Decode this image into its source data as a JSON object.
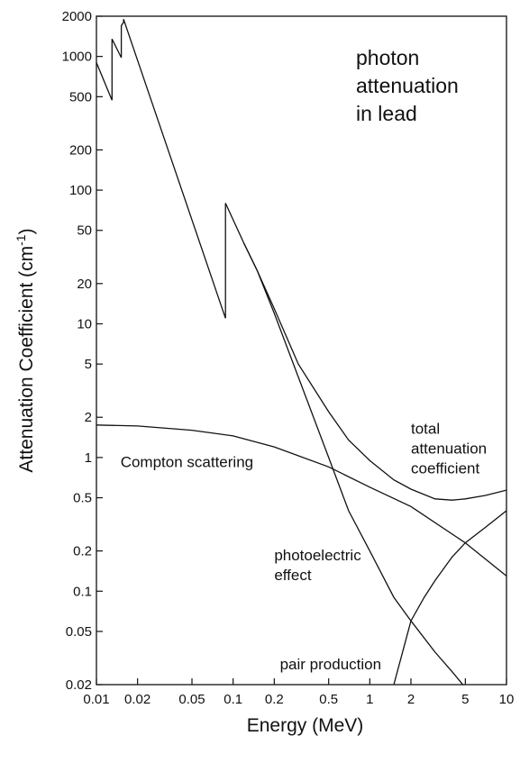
{
  "chart_data": {
    "type": "line",
    "title": [
      "photon",
      "attenuation",
      "in lead"
    ],
    "xlabel": "Energy (MeV)",
    "ylabel": "Attenuation Coefficient (cm",
    "ylabel_sup": "-1",
    "ylabel_close": ")",
    "xscale": "log",
    "yscale": "log",
    "xlim": [
      0.01,
      10
    ],
    "ylim": [
      0.02,
      2000
    ],
    "grid": false,
    "xticks": [
      {
        "value": 0.01,
        "label": "0.01"
      },
      {
        "value": 0.02,
        "label": "0.02"
      },
      {
        "value": 0.05,
        "label": "0.05"
      },
      {
        "value": 0.1,
        "label": "0.1"
      },
      {
        "value": 0.2,
        "label": "0.2"
      },
      {
        "value": 0.5,
        "label": "0.5"
      },
      {
        "value": 1,
        "label": "1"
      },
      {
        "value": 2,
        "label": "2"
      },
      {
        "value": 5,
        "label": "5"
      },
      {
        "value": 10,
        "label": "10"
      }
    ],
    "yticks": [
      {
        "value": 0.02,
        "label": "0.02"
      },
      {
        "value": 0.05,
        "label": "0.05"
      },
      {
        "value": 0.1,
        "label": "0.1"
      },
      {
        "value": 0.2,
        "label": "0.2"
      },
      {
        "value": 0.5,
        "label": "0.5"
      },
      {
        "value": 1,
        "label": "1"
      },
      {
        "value": 2,
        "label": "2"
      },
      {
        "value": 5,
        "label": "5"
      },
      {
        "value": 10,
        "label": "10"
      },
      {
        "value": 20,
        "label": "20"
      },
      {
        "value": 50,
        "label": "50"
      },
      {
        "value": 100,
        "label": "100"
      },
      {
        "value": 200,
        "label": "200"
      },
      {
        "value": 500,
        "label": "500"
      },
      {
        "value": 1000,
        "label": "1000"
      },
      {
        "value": 2000,
        "label": "2000"
      }
    ],
    "annotations": [
      {
        "lines": [
          "total",
          "attenuation",
          "coefficient"
        ],
        "x": 2.0,
        "y": 1.5
      },
      {
        "lines": [
          "Compton scattering"
        ],
        "x": 0.015,
        "y": 0.85
      },
      {
        "lines": [
          "photoelectric",
          "effect"
        ],
        "x": 0.2,
        "y": 0.17
      },
      {
        "lines": [
          "pair production"
        ],
        "x": 0.22,
        "y": 0.026
      }
    ],
    "series": [
      {
        "key": "total",
        "x": [
          0.01,
          0.013,
          0.013,
          0.0152,
          0.0152,
          0.0158,
          0.0158,
          0.088,
          0.088,
          0.1,
          0.12,
          0.15,
          0.2,
          0.3,
          0.5,
          0.7,
          1.0,
          1.5,
          2.0,
          3.0,
          4.0,
          5.0,
          7.0,
          10.0
        ],
        "y": [
          900,
          470,
          1350,
          980,
          1700,
          1800,
          1900,
          11,
          80,
          60,
          40,
          25,
          13,
          5,
          2.2,
          1.35,
          0.95,
          0.68,
          0.58,
          0.49,
          0.48,
          0.49,
          0.52,
          0.57
        ]
      },
      {
        "key": "compton",
        "x": [
          0.01,
          0.02,
          0.05,
          0.1,
          0.2,
          0.5,
          1.0,
          2.0,
          5.0,
          10.0
        ],
        "y": [
          1.75,
          1.72,
          1.6,
          1.45,
          1.2,
          0.85,
          0.6,
          0.43,
          0.23,
          0.13
        ]
      },
      {
        "key": "photoelectric",
        "x": [
          0.12,
          0.15,
          0.2,
          0.3,
          0.5,
          0.7,
          1.0,
          1.5,
          2.0,
          3.0,
          4.0,
          5.0
        ],
        "y": [
          40,
          25,
          12,
          4,
          1.0,
          0.4,
          0.2,
          0.09,
          0.06,
          0.035,
          0.025,
          0.019
        ]
      },
      {
        "key": "pair",
        "x": [
          1.5,
          1.8,
          2.0,
          2.5,
          3.0,
          4.0,
          5.0,
          7.0,
          10.0
        ],
        "y": [
          0.02,
          0.04,
          0.06,
          0.09,
          0.12,
          0.18,
          0.23,
          0.3,
          0.4
        ]
      }
    ]
  }
}
